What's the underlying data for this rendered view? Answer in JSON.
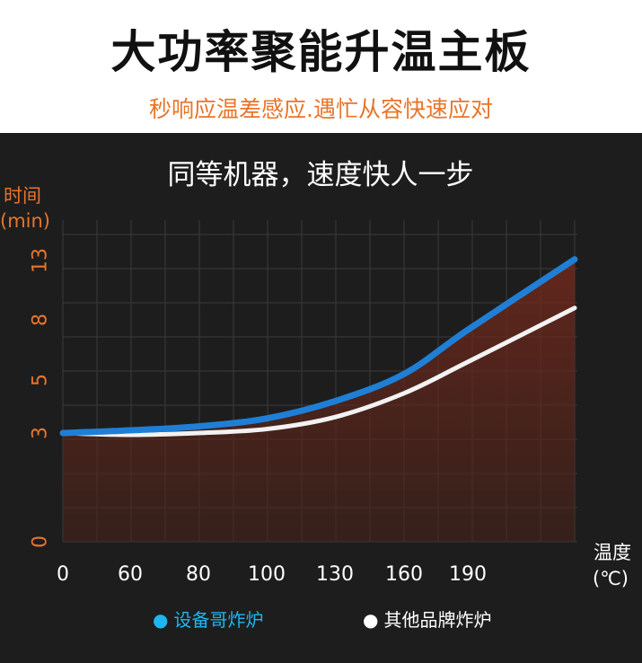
{
  "header": {
    "title": "大功率聚能升温主板",
    "subtitle": "秒响应温差感应.遇忙从容快速应对"
  },
  "colors": {
    "accent": "#e8752a",
    "series_brand": "#1f7fd6",
    "series_other": "#f2f2f2",
    "panel_bg": "#1d1d1e"
  },
  "chart_data": {
    "type": "line",
    "title": "同等机器，速度快人一步",
    "ylabel_line1": "时间",
    "ylabel_line2": "(min)",
    "xlabel_line1": "温度",
    "xlabel_line2": "(℃)",
    "x_ticks": [
      "0",
      "60",
      "80",
      "100",
      "130",
      "160",
      "190"
    ],
    "y_ticks": [
      "0",
      "3",
      "5",
      "8",
      "13"
    ],
    "grid": true,
    "legend_position": "bottom",
    "series": [
      {
        "name": "设备哥炸炉",
        "color": "#1f7fd6",
        "x": [
          0,
          60,
          80,
          100,
          130,
          160,
          190,
          220
        ],
        "y": [
          3,
          3.1,
          3.25,
          3.55,
          4.2,
          5.3,
          7.5,
          13.1
        ]
      },
      {
        "name": "其他品牌炸炉",
        "color": "#f2f2f2",
        "x": [
          0,
          60,
          80,
          100,
          130,
          160,
          190,
          220
        ],
        "y": [
          3,
          2.95,
          3.0,
          3.15,
          3.6,
          4.5,
          5.9,
          9.0
        ]
      }
    ]
  }
}
